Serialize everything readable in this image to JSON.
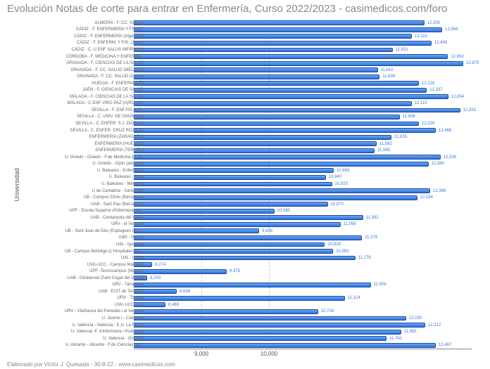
{
  "chart": {
    "type": "bar-horizontal",
    "title": "Evolución Notas de corte para entrar en Enfermería, Curso 2022/2023 - casimedicos.com/foro",
    "title_fontsize": 15,
    "title_color": "#888888",
    "y_axis_label": "Universidad",
    "background_color": "#ffffff",
    "bar_fill_top": "#6aa8f7",
    "bar_fill_bottom": "#2e6fd6",
    "bar_border": "#1b4aa0",
    "grid_color": "#cccccc",
    "value_label_color": "#3b78dd",
    "category_label_color": "#666666",
    "category_fontsize": 6,
    "value_fontsize": 6,
    "x_ticks": [
      9000,
      10000
    ],
    "x_tick_labels": [
      "9,000",
      "10,000"
    ],
    "x_min": 8000,
    "x_max": 13000,
    "footer": "Elaborado por Víctor J. Quesada - 30-8-22 - www.casimedicos.com",
    "data": [
      {
        "label": "ALMERÍA - F. CC. SALUD",
        "value": 12300,
        "value_label": "12,300"
      },
      {
        "label": "CÁDIZ - F. ENFERMERÍA Y FISIOT.",
        "value": 12564,
        "value_label": "12,564"
      },
      {
        "label": "CÁDIZ - F. ENFERMERÍA (Algeciras)",
        "value": 12115,
        "value_label": "12,115"
      },
      {
        "label": "CÁDIZ - F. ENFERM. Y FIS. (Jerez)",
        "value": 12406,
        "value_label": "12,406"
      },
      {
        "label": "CÁDIZ - C. U ENF SALUS INFIRM.(A)",
        "value": 11831,
        "value_label": "11,831"
      },
      {
        "label": "CÓRDOBA - F. MEDICINA Y ENFERME..",
        "value": 12650,
        "value_label": "12,650"
      },
      {
        "label": "GRANADA - F. CIENCIAS DE LA SALUD",
        "value": 12875,
        "value_label": "12,875"
      },
      {
        "label": "GRANADA - F. CC. SALUD (MELILLA)",
        "value": 11610,
        "value_label": "11,610"
      },
      {
        "label": "GRANADA - F. CC. SALUD (Ceuta)",
        "value": 11639,
        "value_label": "11,639"
      },
      {
        "label": "HUELVA - F. ENFERMERÍA",
        "value": 12218,
        "value_label": "12,218"
      },
      {
        "label": "JAÉN - F. CIENCIAS DE SALUD",
        "value": 12337,
        "value_label": "12,337"
      },
      {
        "label": "MÁLAGA - F. CIENCIAS DE LA SALUD",
        "value": 12654,
        "value_label": "12,654"
      },
      {
        "label": "MÁLAGA - C ENF VIRG PAZ (A)RONDA",
        "value": 12110,
        "value_label": "12,110"
      },
      {
        "label": "SEVILLA - F. ENF.FIS.POD.",
        "value": 12832,
        "value_label": "12,832"
      },
      {
        "label": "SEVILLA - C. UNIV. DE OSUNA (A)",
        "value": 11936,
        "value_label": "11,936"
      },
      {
        "label": "SEVILLA - C. ENFER. S.J. DIOS (A)",
        "value": 12220,
        "value_label": "12,220"
      },
      {
        "label": "SEVILLA - C. ENFER. CRUZ ROJA (A)",
        "value": 12468,
        "value_label": "12,468"
      },
      {
        "label": "ENFERMERÍA (ZARAGOZA)",
        "value": 11815,
        "value_label": "11,815"
      },
      {
        "label": "ENFERMERÍA (HUESCA)",
        "value": 11592,
        "value_label": "11,592"
      },
      {
        "label": "ENFERMERÍA (TERUEL)",
        "value": 11565,
        "value_label": "11,565"
      },
      {
        "label": "U. Oviedo - Oviedo - F.de Medicina y Cie..",
        "value": 12538,
        "value_label": "12,538"
      },
      {
        "label": "U. Oviedo - Gijón (adscrito)",
        "value": 12360,
        "value_label": "12,360"
      },
      {
        "label": "U. Baleares - Enfermería",
        "value": 10958,
        "value_label": "10,958"
      },
      {
        "label": "U. Baleares - Ibiza",
        "value": 10840,
        "value_label": "10,840"
      },
      {
        "label": "U. Baleares - Menorca",
        "value": 10933,
        "value_label": "10,933"
      },
      {
        "label": "U de Cantabria - Santander",
        "value": 12386,
        "value_label": "12,386"
      },
      {
        "label": "UB - Campus Clínic (Barcelona)",
        "value": 12194,
        "value_label": "12,194"
      },
      {
        "label": "UAB - Sant Pau (Barcelona)",
        "value": 10870,
        "value_label": "10,870"
      },
      {
        "label": "UPF - Escola Superior d'Infermeria del..",
        "value": 10080,
        "value_label": "10,080"
      },
      {
        "label": "UAB - Cerdanyola del Vallès",
        "value": 11392,
        "value_label": "11,392"
      },
      {
        "label": "URV - el Vendrell",
        "value": 11058,
        "value_label": "11,058"
      },
      {
        "label": "UB - Sant Joan de Déu (Esplugues de Ll..",
        "value": 9856,
        "value_label": "9,856"
      },
      {
        "label": "UdG - Girona",
        "value": 11378,
        "value_label": "11,378"
      },
      {
        "label": "UdL - Igualada",
        "value": 10828,
        "value_label": "10,828"
      },
      {
        "label": "UB - Campus Bellvitge (L'Hospitalet de L..",
        "value": 10950,
        "value_label": "10,950"
      },
      {
        "label": "UdL - Lleida",
        "value": 11278,
        "value_label": "11,278"
      },
      {
        "label": "UVic-UCC - Campus Manresa",
        "value": 8274,
        "value_label": "8,274"
      },
      {
        "label": "UPF -Tecnocampus (Mataró)",
        "value": 9375,
        "value_label": "9,375"
      },
      {
        "label": "UAB - Gimbernat (Sant Cugat del Vallès)",
        "value": 8200,
        "value_label": "8,200"
      },
      {
        "label": "URV - Tarragona",
        "value": 11508,
        "value_label": "11,508"
      },
      {
        "label": "UAB - EUIT de Terrassa",
        "value": 8636,
        "value_label": "8,636"
      },
      {
        "label": "URV - Tortosa",
        "value": 11124,
        "value_label": "11,124"
      },
      {
        "label": "UVic-UCC - Vic",
        "value": 8469,
        "value_label": "8,469"
      },
      {
        "label": "URV - Vilafranca del Penedès i el Vendrell",
        "value": 10726,
        "value_label": "10,726"
      },
      {
        "label": "U. Jaume I - Castellón",
        "value": 12030,
        "value_label": "12,030"
      },
      {
        "label": "U. Valencia - Valencia - E.U. La Fe (A)",
        "value": 12312,
        "value_label": "12,312"
      },
      {
        "label": "U. Valencia -F. d'Infermeria i Podologia",
        "value": 11955,
        "value_label": "11,955"
      },
      {
        "label": "U. Valencia - Ontiyent",
        "value": 11742,
        "value_label": "11,742"
      },
      {
        "label": "U. Alicante - Alicante - F.de Ciencias de l..",
        "value": 12467,
        "value_label": "12,467"
      }
    ]
  }
}
